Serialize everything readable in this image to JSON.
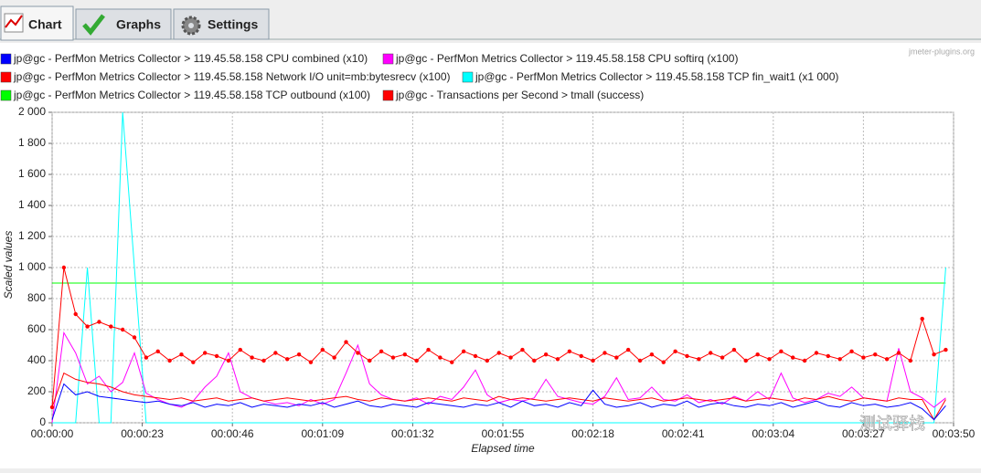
{
  "tabs": [
    "Chart",
    "Graphs",
    "Settings"
  ],
  "credit": "jmeter-plugins.org",
  "overlay": "测试驿栈",
  "chart_data": {
    "type": "line",
    "y_label": "Scaled values",
    "x_label": "Elapsed time",
    "xlim": [
      0,
      230
    ],
    "ylim": [
      0,
      2000
    ],
    "grid": true,
    "xticks": [
      {
        "value": 0,
        "label": "00:00:00"
      },
      {
        "value": 23,
        "label": "00:00:23"
      },
      {
        "value": 46,
        "label": "00:00:46"
      },
      {
        "value": 69,
        "label": "00:01:09"
      },
      {
        "value": 92,
        "label": "00:01:32"
      },
      {
        "value": 115,
        "label": "00:01:55"
      },
      {
        "value": 138,
        "label": "00:02:18"
      },
      {
        "value": 161,
        "label": "00:02:41"
      },
      {
        "value": 184,
        "label": "00:03:04"
      },
      {
        "value": 207,
        "label": "00:03:27"
      },
      {
        "value": 230,
        "label": "00:03:50"
      }
    ],
    "yticks": [
      0,
      200,
      400,
      600,
      800,
      {
        "value": 1000,
        "label": "1 000"
      },
      {
        "value": 1200,
        "label": "1 200"
      },
      {
        "value": 1400,
        "label": "1 400"
      },
      {
        "value": 1600,
        "label": "1 600"
      },
      {
        "value": 1800,
        "label": "1 800"
      },
      {
        "value": 2000,
        "label": "2 000"
      }
    ],
    "x": [
      0,
      3,
      6,
      9,
      12,
      15,
      18,
      21,
      24,
      27,
      30,
      33,
      36,
      39,
      42,
      45,
      48,
      51,
      54,
      57,
      60,
      63,
      66,
      69,
      72,
      75,
      78,
      81,
      84,
      87,
      90,
      93,
      96,
      99,
      102,
      105,
      108,
      111,
      114,
      117,
      120,
      123,
      126,
      129,
      132,
      135,
      138,
      141,
      144,
      147,
      150,
      153,
      156,
      159,
      162,
      165,
      168,
      171,
      174,
      177,
      180,
      183,
      186,
      189,
      192,
      195,
      198,
      201,
      204,
      207,
      210,
      213,
      216,
      219,
      222,
      225,
      228
    ],
    "series": [
      {
        "name": "jp@gc - PerfMon Metrics Collector > 119.45.58.158 TCP outbound (x100)",
        "color": "#00ff00",
        "values": [
          900,
          900,
          900,
          900,
          900,
          900,
          900,
          900,
          900,
          900,
          900,
          900,
          900,
          900,
          900,
          900,
          900,
          900,
          900,
          900,
          900,
          900,
          900,
          900,
          900,
          900,
          900,
          900,
          900,
          900,
          900,
          900,
          900,
          900,
          900,
          900,
          900,
          900,
          900,
          900,
          900,
          900,
          900,
          900,
          900,
          900,
          900,
          900,
          900,
          900,
          900,
          900,
          900,
          900,
          900,
          900,
          900,
          900,
          900,
          900,
          900,
          900,
          900,
          900,
          900,
          900,
          900,
          900,
          900,
          900,
          900,
          900,
          900,
          900,
          900,
          900,
          900
        ]
      },
      {
        "name": "jp@gc - PerfMon Metrics Collector > 119.45.58.158 TCP fin_wait1 (x1 000)",
        "color": "#00ffff",
        "values": [
          0,
          0,
          0,
          1000,
          0,
          0,
          2000,
          1000,
          0,
          0,
          0,
          0,
          0,
          0,
          0,
          0,
          0,
          0,
          0,
          0,
          0,
          0,
          0,
          0,
          0,
          0,
          0,
          0,
          0,
          0,
          0,
          0,
          0,
          0,
          0,
          0,
          0,
          0,
          0,
          0,
          0,
          0,
          0,
          0,
          0,
          0,
          0,
          0,
          0,
          0,
          0,
          0,
          0,
          0,
          0,
          0,
          0,
          0,
          0,
          0,
          0,
          0,
          0,
          0,
          0,
          0,
          0,
          0,
          0,
          0,
          0,
          0,
          0,
          0,
          0,
          0,
          1000
        ]
      },
      {
        "name": "jp@gc - PerfMon Metrics Collector > 119.45.58.158 CPU softirq (x100)",
        "color": "#ff00ff",
        "values": [
          0,
          580,
          450,
          250,
          300,
          200,
          260,
          450,
          190,
          150,
          120,
          100,
          140,
          230,
          300,
          450,
          200,
          160,
          140,
          120,
          130,
          110,
          150,
          120,
          150,
          320,
          500,
          250,
          180,
          150,
          140,
          160,
          120,
          170,
          150,
          230,
          340,
          180,
          130,
          150,
          140,
          160,
          280,
          170,
          150,
          130,
          120,
          170,
          290,
          150,
          160,
          230,
          150,
          140,
          180,
          130,
          150,
          120,
          170,
          140,
          200,
          150,
          320,
          160,
          130,
          150,
          190,
          170,
          230,
          160,
          150,
          140,
          480,
          200,
          160,
          100,
          160
        ]
      },
      {
        "name": "jp@gc - PerfMon Metrics Collector > 119.45.58.158 Network I/O unit=mb:bytesrecv (x100)",
        "color": "#ff0000",
        "values": [
          100,
          320,
          280,
          260,
          250,
          230,
          200,
          180,
          170,
          160,
          150,
          160,
          140,
          150,
          160,
          140,
          150,
          160,
          140,
          150,
          160,
          150,
          140,
          150,
          160,
          170,
          150,
          140,
          160,
          150,
          140,
          150,
          160,
          150,
          140,
          160,
          150,
          140,
          170,
          150,
          160,
          150,
          140,
          150,
          160,
          150,
          140,
          160,
          150,
          140,
          150,
          160,
          140,
          150,
          160,
          150,
          140,
          150,
          160,
          140,
          150,
          160,
          150,
          140,
          160,
          150,
          170,
          150,
          140,
          160,
          150,
          140,
          160,
          150,
          150,
          20,
          150
        ]
      },
      {
        "name": "jp@gc - PerfMon Metrics Collector > 119.45.58.158 CPU combined (x10)",
        "color": "#0000ff",
        "values": [
          20,
          250,
          180,
          200,
          170,
          160,
          150,
          140,
          130,
          140,
          120,
          110,
          130,
          100,
          120,
          110,
          130,
          100,
          120,
          110,
          100,
          120,
          110,
          130,
          100,
          120,
          140,
          110,
          100,
          120,
          110,
          100,
          130,
          120,
          110,
          100,
          120,
          110,
          130,
          100,
          140,
          110,
          120,
          100,
          130,
          110,
          210,
          120,
          100,
          110,
          130,
          100,
          120,
          110,
          140,
          100,
          120,
          130,
          110,
          100,
          120,
          110,
          130,
          100,
          120,
          140,
          110,
          100,
          130,
          110,
          120,
          100,
          110,
          130,
          90,
          20,
          110
        ]
      },
      {
        "name": "jp@gc - Transactions per Second > tmall (success)",
        "color": "#ff0000",
        "marker": "circle",
        "values": [
          100,
          1000,
          700,
          620,
          650,
          620,
          600,
          550,
          420,
          460,
          400,
          440,
          390,
          450,
          430,
          400,
          470,
          420,
          400,
          450,
          410,
          440,
          390,
          470,
          420,
          520,
          450,
          400,
          460,
          420,
          440,
          400,
          470,
          420,
          390,
          460,
          430,
          400,
          450,
          420,
          470,
          400,
          440,
          410,
          460,
          430,
          400,
          450,
          420,
          470,
          400,
          440,
          390,
          460,
          430,
          410,
          450,
          420,
          470,
          400,
          440,
          410,
          460,
          420,
          400,
          450,
          430,
          410,
          460,
          420,
          440,
          410,
          450,
          400,
          670,
          440,
          470
        ]
      }
    ],
    "legend_order": [
      4,
      2,
      3,
      1,
      0,
      5
    ]
  }
}
